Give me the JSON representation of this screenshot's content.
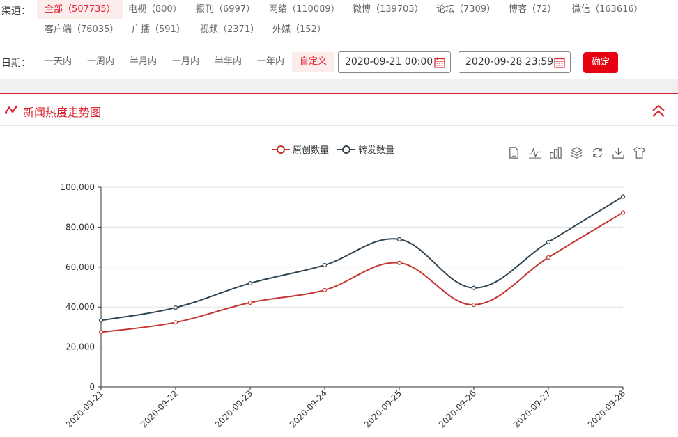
{
  "filters": {
    "channel_label": "渠道：",
    "channels": [
      {
        "label": "全部（507735）",
        "active": true
      },
      {
        "label": "电视（800）"
      },
      {
        "label": "报刊（6997）"
      },
      {
        "label": "网络（110089）"
      },
      {
        "label": "微博（139703）"
      },
      {
        "label": "论坛（7309）"
      },
      {
        "label": "博客（72）"
      },
      {
        "label": "微信（163616）"
      },
      {
        "label": "客户端（76035）"
      },
      {
        "label": "广播（591）"
      },
      {
        "label": "视频（2371）"
      },
      {
        "label": "外媒（152）"
      }
    ],
    "date_label": "日期：",
    "date_ranges": [
      {
        "label": "一天内"
      },
      {
        "label": "一周内"
      },
      {
        "label": "半月内"
      },
      {
        "label": "一月内"
      },
      {
        "label": "半年内"
      },
      {
        "label": "一年内"
      },
      {
        "label": "自定义",
        "active": true
      }
    ],
    "start_date": "2020-09-21 00:00",
    "end_date": "2020-09-28 23:59",
    "confirm_label": "确定"
  },
  "panel": {
    "title": "新闻热度走势图"
  },
  "colors": {
    "accent": "#d9232e",
    "original": "#c23531",
    "forwarded": "#2f4554"
  },
  "toolbox_icons": [
    "data-view-icon",
    "line-chart-icon",
    "bar-chart-icon",
    "stack-icon",
    "restore-icon",
    "download-icon",
    "theme-icon"
  ],
  "chart_data": {
    "type": "line",
    "smooth": true,
    "categories": [
      "2020-09-21",
      "2020-09-22",
      "2020-09-23",
      "2020-09-24",
      "2020-09-25",
      "2020-09-26",
      "2020-09-27",
      "2020-09-28"
    ],
    "series": [
      {
        "name": "原创数量",
        "values": [
          27400,
          32300,
          42200,
          48500,
          62100,
          41100,
          64800,
          87300
        ]
      },
      {
        "name": "转发数量",
        "values": [
          33300,
          39700,
          51900,
          61000,
          73900,
          49600,
          72500,
          95300
        ]
      }
    ],
    "ylim": [
      0,
      100000
    ],
    "yticks": [
      "0",
      "20,000",
      "40,000",
      "60,000",
      "80,000",
      "100,000"
    ],
    "legend_position": "top-center",
    "grid": true
  }
}
